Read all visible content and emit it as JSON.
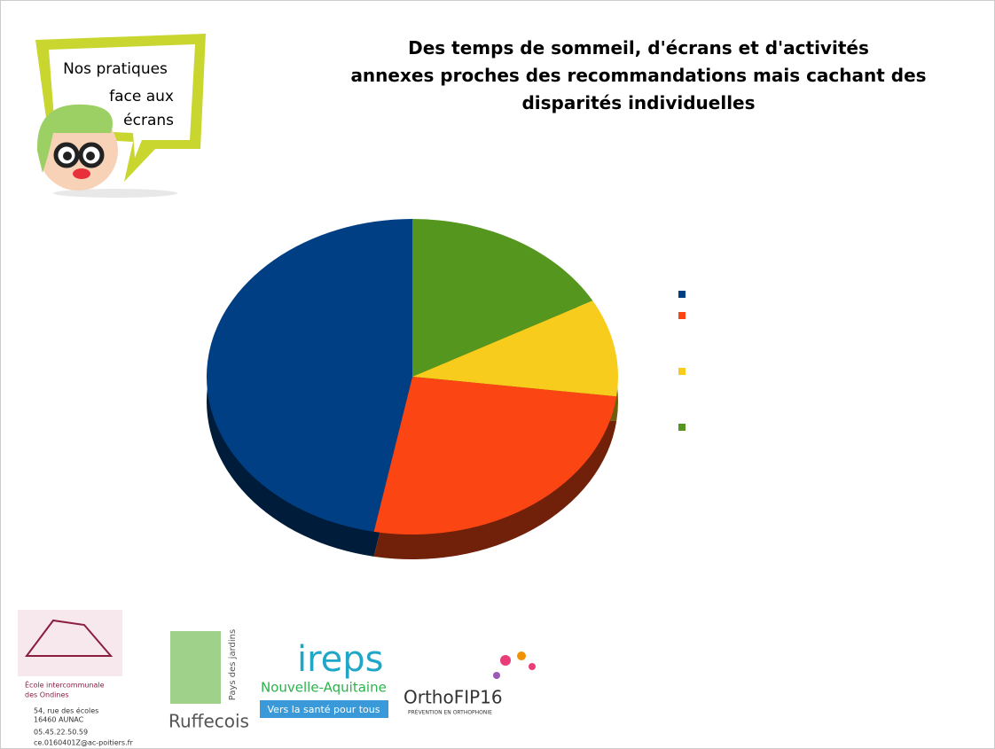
{
  "chart_data": {
    "type": "pie",
    "title": "Des temps de sommeil, d'écrans et d'activités annexes proches des recommandations mais cachant des disparités individuelles",
    "values": [
      17,
      10,
      26,
      47
    ],
    "colors": [
      "#54961e",
      "#f7cc1d",
      "#fb4613",
      "#003f84"
    ],
    "legend": "right"
  },
  "bubble": {
    "lines": [
      "Nos pratiques",
      "face aux",
      "écrans"
    ]
  },
  "footer": {
    "school": [
      "École intercommunale",
      "des Ondines"
    ],
    "address": [
      "54, rue des écoles",
      "16460 AUNAC"
    ],
    "phone": "05.45.22.50.59",
    "email": "ce.0160401Z@ac-poitiers.fr",
    "ruffecois": "Ruffecois",
    "ruffecois_sub": "Pays des jardins",
    "ireps": "ireps",
    "ireps_region": "Nouvelle-Aquitaine",
    "ireps_tagline": "Vers la santé pour tous",
    "ortho": "OrthoFIP16",
    "ortho_sub": "PRÉVENTION EN ORTHOPHONIE"
  }
}
